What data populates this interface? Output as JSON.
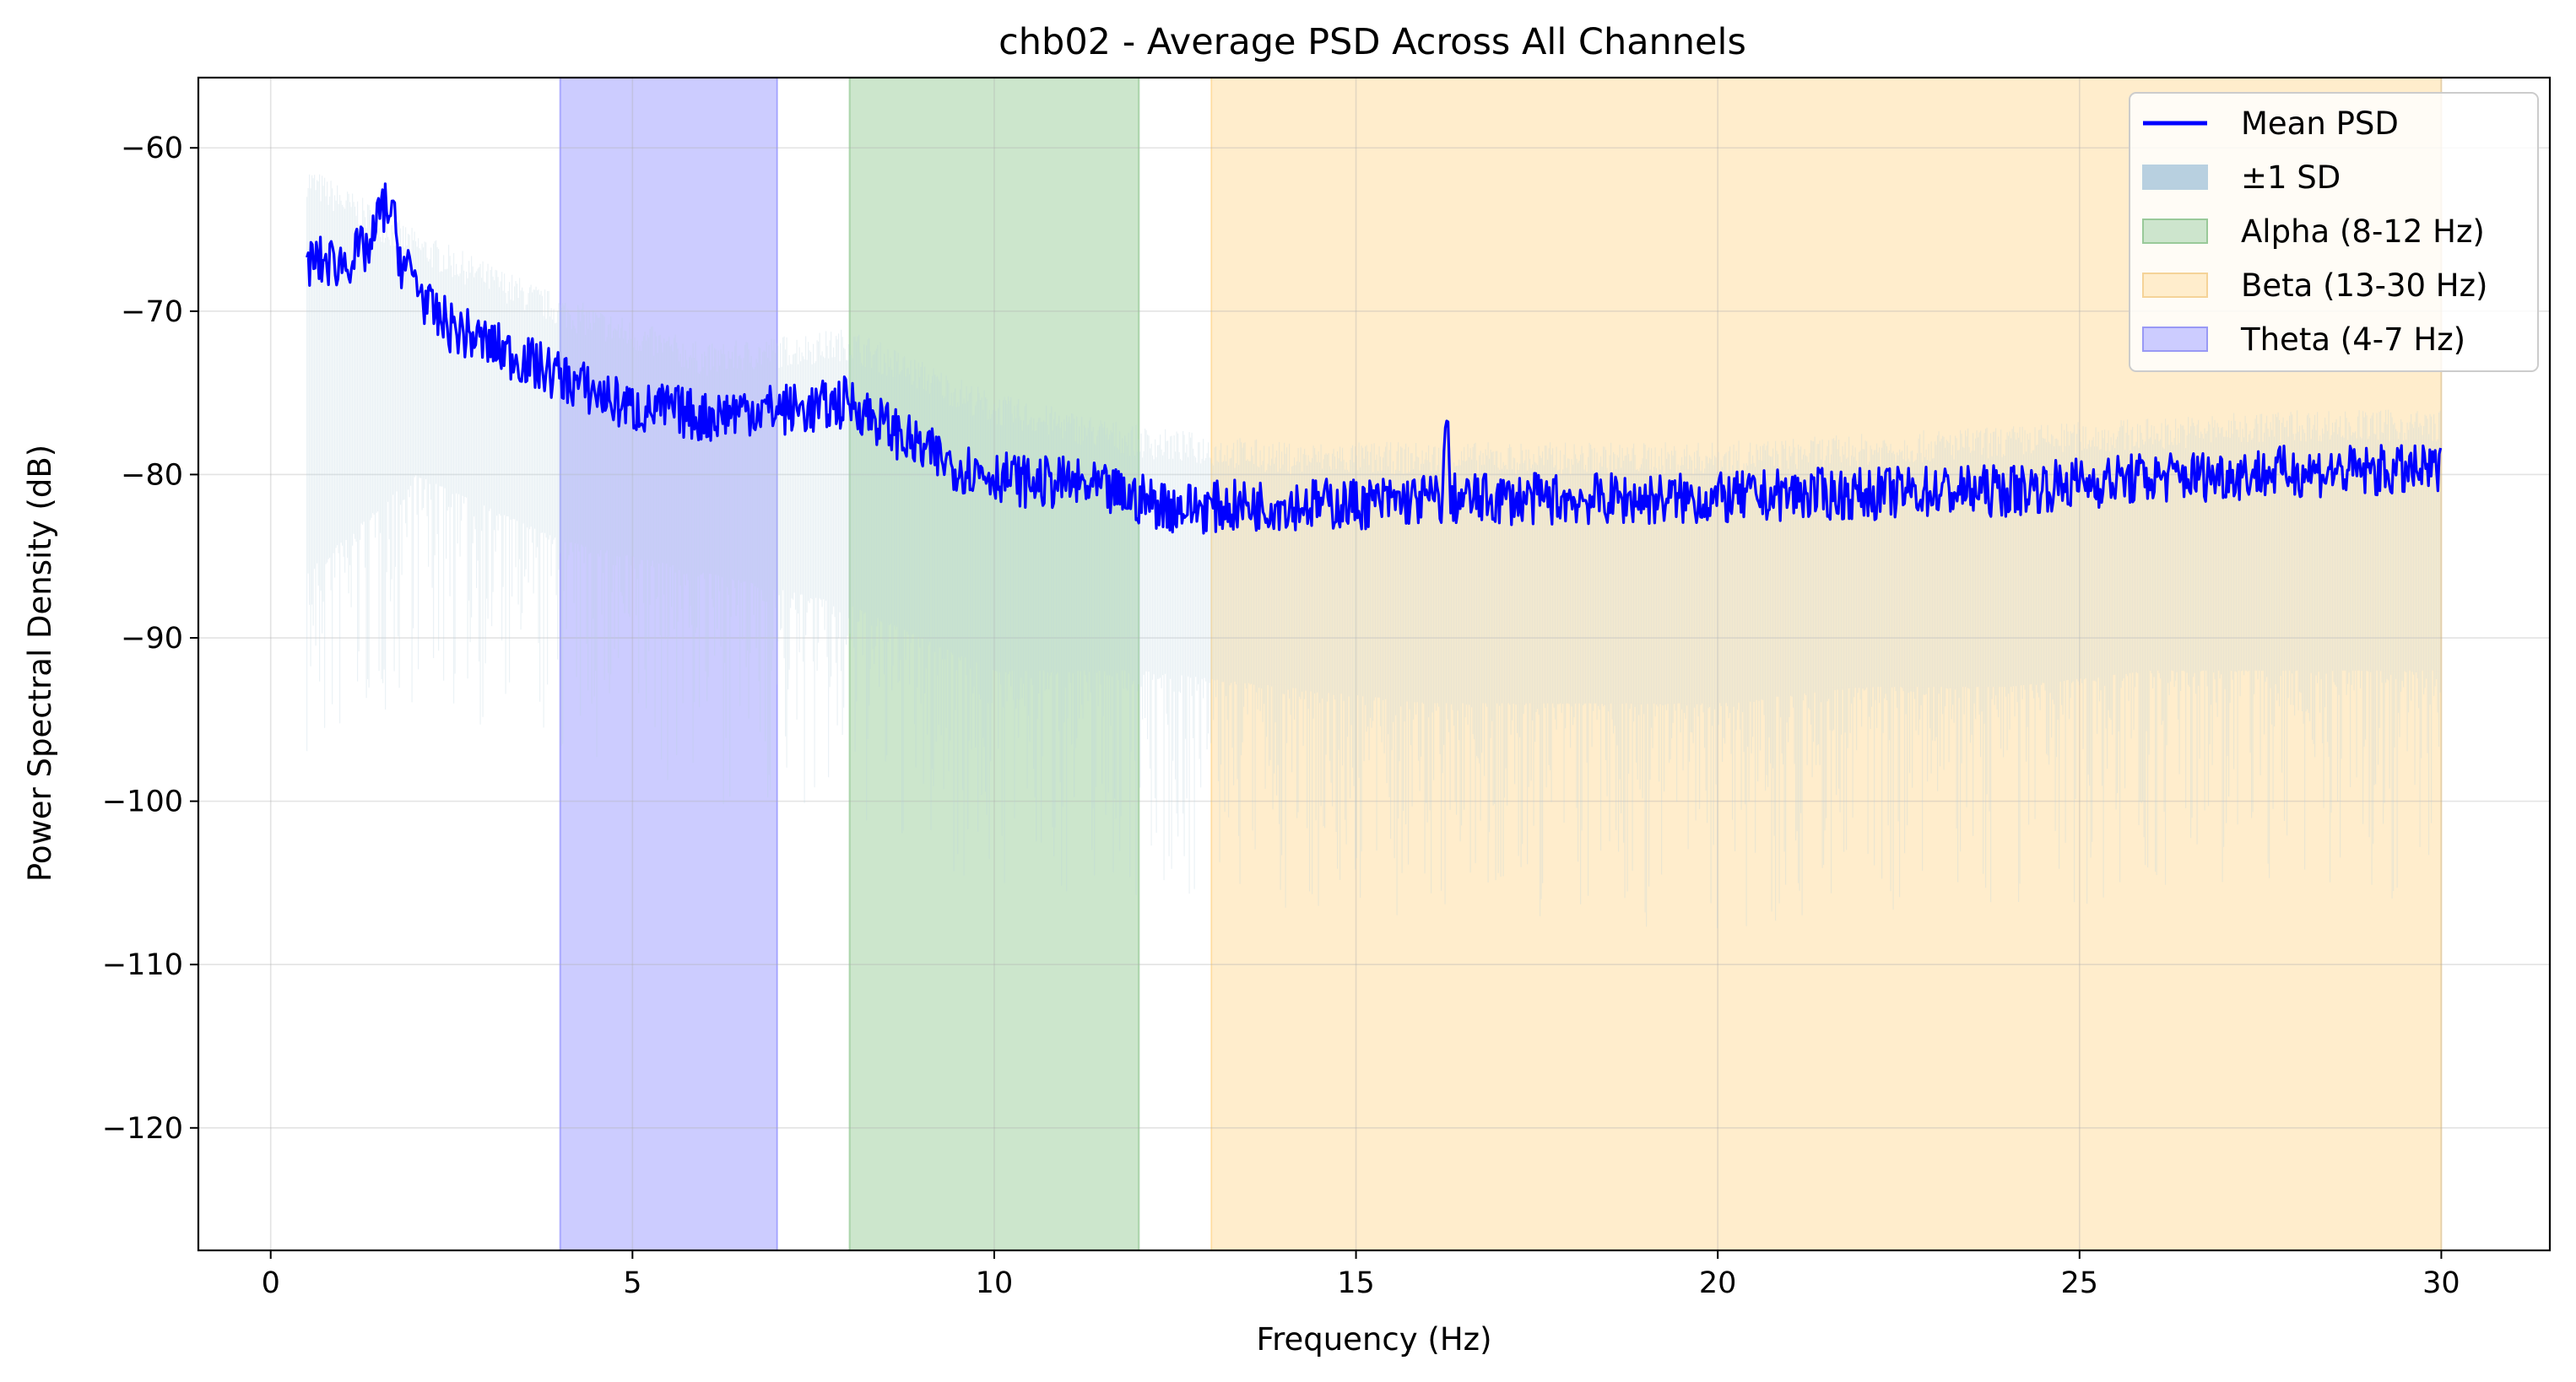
{
  "chart_data": {
    "type": "line",
    "title": "chb02 - Average PSD Across All Channels",
    "xlabel": "Frequency (Hz)",
    "ylabel": "Power Spectral Density (dB)",
    "xlim": [
      -1,
      31.5
    ],
    "ylim": [
      -127.5,
      -55.7
    ],
    "xticks": [
      0,
      5,
      10,
      15,
      20,
      25,
      30
    ],
    "yticks": [
      -60,
      -70,
      -80,
      -90,
      -100,
      -110,
      -120
    ],
    "grid": true,
    "legend_position": "top-right",
    "bands": [
      {
        "name": "Theta (4-7 Hz)",
        "x0": 4,
        "x1": 7,
        "color": "#0000ff",
        "opacity": 0.2
      },
      {
        "name": "Alpha (8-12 Hz)",
        "x0": 8,
        "x1": 12,
        "color": "#008000",
        "opacity": 0.2
      },
      {
        "name": "Beta (13-30 Hz)",
        "x0": 13,
        "x1": 30,
        "color": "#ffa500",
        "opacity": 0.2
      }
    ],
    "series": [
      {
        "name": "Mean PSD",
        "color": "#0000ff",
        "x": [
          0.5,
          0.8,
          1.0,
          1.2,
          1.4,
          1.5,
          1.6,
          1.7,
          1.8,
          2.0,
          2.2,
          2.5,
          3.0,
          3.5,
          4.0,
          4.5,
          5.0,
          5.5,
          6.0,
          6.5,
          7.0,
          7.5,
          8.0,
          8.5,
          9.0,
          9.5,
          10.0,
          10.5,
          11.0,
          11.5,
          12.0,
          12.5,
          13.0,
          14.0,
          15.0,
          16.0,
          16.2,
          16.25,
          16.3,
          17.0,
          18.0,
          19.0,
          20.0,
          21.0,
          22.0,
          23.0,
          24.0,
          25.0,
          26.0,
          27.0,
          28.0,
          29.0,
          30.0
        ],
        "y": [
          -67,
          -67,
          -67,
          -66.5,
          -66,
          -64,
          -63.5,
          -64.5,
          -67,
          -68,
          -70,
          -71,
          -72,
          -73,
          -74,
          -75,
          -76,
          -76,
          -76.5,
          -76,
          -76,
          -76,
          -75.5,
          -77,
          -78.5,
          -79.5,
          -80,
          -80.5,
          -80.5,
          -81,
          -81.5,
          -82,
          -82,
          -81.8,
          -81.8,
          -81.5,
          -81.5,
          -75.5,
          -81.5,
          -81.5,
          -81.5,
          -81.5,
          -81.5,
          -81.2,
          -81.2,
          -81,
          -81,
          -80.5,
          -80.2,
          -80,
          -79.8,
          -79.8,
          -79.8
        ]
      },
      {
        "name": "±1 SD",
        "color": "#b8d0e0",
        "x": [
          0.5,
          2.0,
          4.0,
          6.0,
          8.0,
          10.0,
          12.0,
          14.0,
          16.0,
          18.0,
          20.0,
          22.0,
          24.0,
          26.0,
          28.0,
          30.0
        ],
        "upper": [
          -62,
          -66,
          -70,
          -73,
          -72,
          -76,
          -78,
          -79,
          -79,
          -79,
          -79,
          -78.5,
          -78,
          -77.5,
          -77,
          -77
        ],
        "lower": [
          -86,
          -80,
          -84,
          -86,
          -88,
          -92,
          -92,
          -93,
          -94,
          -94,
          -94,
          -93,
          -93,
          -92,
          -92,
          -92
        ]
      }
    ],
    "legend": [
      {
        "label": "Mean PSD",
        "kind": "line",
        "color": "#0000ff"
      },
      {
        "label": "±1 SD",
        "kind": "patch",
        "color": "#b8d0e0"
      },
      {
        "label": "Alpha (8-12 Hz)",
        "kind": "patch",
        "color": "#cde5cd",
        "edge": "#99c999"
      },
      {
        "label": "Beta (13-30 Hz)",
        "kind": "patch",
        "color": "#ffedcc",
        "edge": "#f5d398"
      },
      {
        "label": "Theta (4-7 Hz)",
        "kind": "patch",
        "color": "#ccccff",
        "edge": "#9999f5"
      }
    ]
  }
}
